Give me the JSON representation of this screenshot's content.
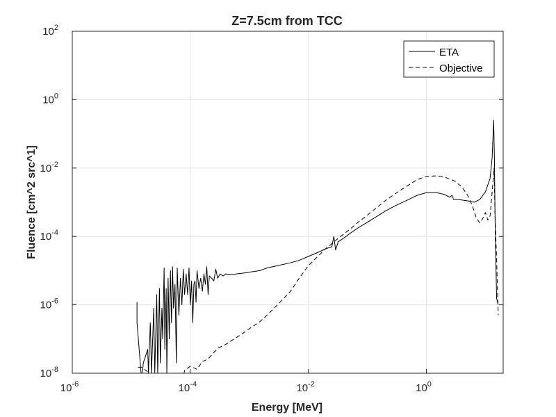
{
  "chart_data": {
    "type": "line",
    "title": "Z=7.5cm from TCC",
    "xlabel": "Energy [MeV]",
    "ylabel": "Fluence [cm^2 src^1]",
    "xscale": "log",
    "yscale": "log",
    "xlim": [
      1e-06,
      20
    ],
    "ylim": [
      1e-08,
      100
    ],
    "grid": true,
    "legend_position": "top-right",
    "x_ticks": [
      {
        "value": 1e-06,
        "base": "10",
        "exp": "-6"
      },
      {
        "value": 0.0001,
        "base": "10",
        "exp": "-4"
      },
      {
        "value": 0.01,
        "base": "10",
        "exp": "-2"
      },
      {
        "value": 1,
        "base": "10",
        "exp": "0"
      }
    ],
    "y_ticks": [
      {
        "value": 1e-08,
        "base": "10",
        "exp": "-8"
      },
      {
        "value": 1e-06,
        "base": "10",
        "exp": "-6"
      },
      {
        "value": 0.0001,
        "base": "10",
        "exp": "-4"
      },
      {
        "value": 0.01,
        "base": "10",
        "exp": "-2"
      },
      {
        "value": 1,
        "base": "10",
        "exp": "0"
      },
      {
        "value": 100,
        "base": "10",
        "exp": "2"
      }
    ],
    "series": [
      {
        "name": "ETA",
        "style": "solid",
        "color": "#000000",
        "points": [
          [
            1.25e-05,
            1.2e-06
          ],
          [
            1.25e-05,
            3e-07
          ],
          [
            1.5e-05,
            6e-09
          ],
          [
            1.6e-05,
            2e-08
          ],
          [
            1.9e-05,
            5e-08
          ],
          [
            1.95e-05,
            1e-08
          ],
          [
            2.1e-05,
            3e-07
          ],
          [
            2.2e-05,
            1e-08
          ],
          [
            2.4e-05,
            8e-07
          ],
          [
            2.5e-05,
            1e-08
          ],
          [
            2.7e-05,
            2e-06
          ],
          [
            2.8e-05,
            1e-08
          ],
          [
            3e-05,
            3e-06
          ],
          [
            3.1e-05,
            2e-08
          ],
          [
            3.3e-05,
            8e-07
          ],
          [
            3.4e-05,
            1e-07
          ],
          [
            3.6e-05,
            1.2e-05
          ],
          [
            3.7e-05,
            5e-08
          ],
          [
            3.9e-05,
            3e-06
          ],
          [
            4e-05,
            1e-08
          ],
          [
            4.2e-05,
            6e-06
          ],
          [
            4.4e-05,
            1e-07
          ],
          [
            4.6e-05,
            1e-05
          ],
          [
            4.8e-05,
            3e-07
          ],
          [
            5e-05,
            1.3e-05
          ],
          [
            5.2e-05,
            8e-07
          ],
          [
            5.5e-05,
            4e-06
          ],
          [
            5.8e-05,
            2e-08
          ],
          [
            6e-05,
            1.2e-05
          ],
          [
            6.4e-05,
            5e-07
          ],
          [
            6.8e-05,
            6e-06
          ],
          [
            7.2e-05,
            1e-06
          ],
          [
            7.6e-05,
            1.1e-05
          ],
          [
            8e-05,
            2e-06
          ],
          [
            8.5e-05,
            8e-06
          ],
          [
            9e-05,
            2e-06
          ],
          [
            9.5e-05,
            1.2e-05
          ],
          [
            0.0001,
            1e-06
          ],
          [
            0.000105,
            5e-06
          ],
          [
            0.00011,
            3e-07
          ],
          [
            0.000115,
            4e-06
          ],
          [
            0.00012,
            5e-06
          ],
          [
            0.000125,
            1.2e-06
          ],
          [
            0.00013,
            1e-05
          ],
          [
            0.00014,
            3e-06
          ],
          [
            0.00015,
            6e-06
          ],
          [
            0.00016,
            2.5e-06
          ],
          [
            0.00017,
            8e-06
          ],
          [
            0.00018,
            4e-06
          ],
          [
            0.00019,
            1.3e-05
          ],
          [
            0.0002,
            2e-06
          ],
          [
            0.00021,
            7e-06
          ],
          [
            0.00023,
            6e-06
          ],
          [
            0.00025,
            5e-06
          ],
          [
            0.00027,
            1.1e-05
          ],
          [
            0.00029,
            6e-06
          ],
          [
            0.00032,
            8e-06
          ],
          [
            0.00036,
            7e-06
          ],
          [
            0.0004,
            8e-06
          ],
          [
            0.0005,
            7.5e-06
          ],
          [
            0.0006,
            8e-06
          ],
          [
            0.0008,
            8.5e-06
          ],
          [
            0.001,
            9e-06
          ],
          [
            0.0015,
            1e-05
          ],
          [
            0.002,
            1.2e-05
          ],
          [
            0.003,
            1.4e-05
          ],
          [
            0.005,
            1.7e-05
          ],
          [
            0.007,
            2e-05
          ],
          [
            0.01,
            2.6e-05
          ],
          [
            0.015,
            3.5e-05
          ],
          [
            0.02,
            4.4e-05
          ],
          [
            0.025,
            5e-05
          ],
          [
            0.027,
            0.0001
          ],
          [
            0.029,
            4e-05
          ],
          [
            0.032,
            7e-05
          ],
          [
            0.04,
            9e-05
          ],
          [
            0.05,
            0.00012
          ],
          [
            0.07,
            0.00018
          ],
          [
            0.1,
            0.00026
          ],
          [
            0.15,
            0.0004
          ],
          [
            0.2,
            0.00055
          ],
          [
            0.3,
            0.0008
          ],
          [
            0.5,
            0.0012
          ],
          [
            0.7,
            0.0016
          ],
          [
            1.0,
            0.0019
          ],
          [
            1.5,
            0.0019
          ],
          [
            2.0,
            0.0017
          ],
          [
            2.5,
            0.0014
          ],
          [
            2.7,
            0.0016
          ],
          [
            2.9,
            0.0012
          ],
          [
            3.5,
            0.0012
          ],
          [
            5.0,
            0.0011
          ],
          [
            6.5,
            0.001
          ],
          [
            8.0,
            0.0012
          ],
          [
            10.0,
            0.002
          ],
          [
            12.0,
            0.005
          ],
          [
            13.0,
            0.02
          ],
          [
            13.8,
            0.25
          ],
          [
            14.2,
            0.02
          ],
          [
            14.7,
            0.0001
          ],
          [
            15.5,
            1.5e-06
          ],
          [
            16.5,
            1e-06
          ]
        ]
      },
      {
        "name": "Objective",
        "style": "dashed",
        "color": "#000000",
        "points": [
          [
            1.3e-05,
            1.5e-08
          ],
          [
            1.5e-05,
            1.5e-08
          ],
          [
            3e-05,
            6e-09
          ],
          [
            4e-05,
            8e-09
          ],
          [
            5e-05,
            3e-09
          ],
          [
            6e-05,
            1e-08
          ],
          [
            7e-05,
            3e-09
          ],
          [
            8e-05,
            1.2e-08
          ],
          [
            0.0001,
            1.6e-08
          ],
          [
            0.00013,
            1.3e-08
          ],
          [
            0.00016,
            2.2e-08
          ],
          [
            0.0002,
            2.6e-08
          ],
          [
            0.00025,
            4e-08
          ],
          [
            0.0003,
            5.5e-08
          ],
          [
            0.0004,
            7e-08
          ],
          [
            0.0005,
            9e-08
          ],
          [
            0.0007,
            1.3e-07
          ],
          [
            0.001,
            2e-07
          ],
          [
            0.0015,
            3.2e-07
          ],
          [
            0.002,
            5e-07
          ],
          [
            0.003,
            1e-06
          ],
          [
            0.005,
            2.5e-06
          ],
          [
            0.007,
            6e-06
          ],
          [
            0.01,
            1.4e-05
          ],
          [
            0.02,
            4.5e-05
          ],
          [
            0.03,
            8e-05
          ],
          [
            0.05,
            0.00016
          ],
          [
            0.07,
            0.00026
          ],
          [
            0.1,
            0.00042
          ],
          [
            0.2,
            0.0011
          ],
          [
            0.3,
            0.0018
          ],
          [
            0.5,
            0.0032
          ],
          [
            0.7,
            0.0046
          ],
          [
            1.0,
            0.0057
          ],
          [
            1.5,
            0.0059
          ],
          [
            2.0,
            0.0055
          ],
          [
            3.0,
            0.0042
          ],
          [
            4.0,
            0.0028
          ],
          [
            5.0,
            0.0016
          ],
          [
            6.0,
            0.0008
          ],
          [
            7.0,
            0.00035
          ],
          [
            8.0,
            0.00025
          ],
          [
            9.0,
            0.00033
          ],
          [
            10.0,
            0.0005
          ],
          [
            11.0,
            0.0003
          ],
          [
            12.0,
            0.0004
          ],
          [
            13.0,
            0.002
          ],
          [
            14.0,
            0.01
          ],
          [
            14.5,
            0.0005
          ],
          [
            15.5,
            2e-05
          ],
          [
            16.5,
            5e-07
          ]
        ]
      }
    ]
  }
}
